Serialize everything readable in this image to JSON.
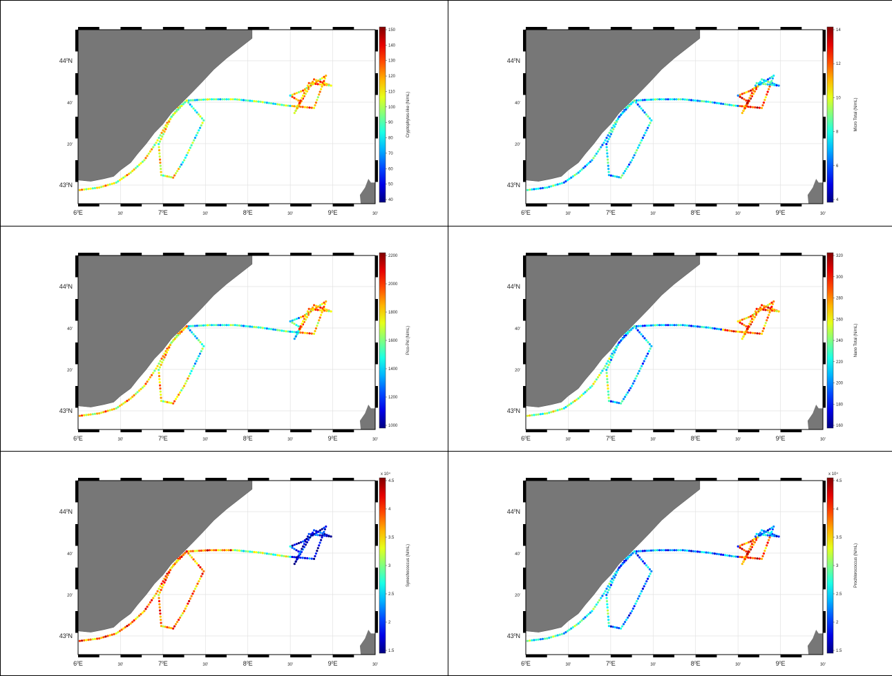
{
  "map_axes": {
    "x_ticks": [
      {
        "base": "6",
        "sup": "0",
        "suffix": "E"
      },
      {
        "base": "30'",
        "sup": "",
        "suffix": ""
      },
      {
        "base": "7",
        "sup": "0",
        "suffix": "E"
      },
      {
        "base": "30'",
        "sup": "",
        "suffix": ""
      },
      {
        "base": "8",
        "sup": "0",
        "suffix": "E"
      },
      {
        "base": "30'",
        "sup": "",
        "suffix": ""
      },
      {
        "base": "9",
        "sup": "0",
        "suffix": "E"
      },
      {
        "base": "30'",
        "sup": "",
        "suffix": ""
      }
    ],
    "y_ticks": [
      {
        "base": "44",
        "sup": "0",
        "suffix": "N"
      },
      {
        "base": "40'",
        "sup": "",
        "suffix": ""
      },
      {
        "base": "20'",
        "sup": "",
        "suffix": ""
      },
      {
        "base": "43",
        "sup": "0",
        "suffix": "N"
      }
    ],
    "land_color": "#777777",
    "grid": true
  },
  "panels": [
    {
      "colorbar_label": "Cryptophytes-like (N/mL)",
      "ticks": [
        "150",
        "140",
        "130",
        "120",
        "110",
        "100",
        "90",
        "80",
        "70",
        "60",
        "50",
        "40"
      ],
      "exponent": "",
      "pattern": "crypto"
    },
    {
      "colorbar_label": "Micro Total (N/mL)",
      "ticks": [
        "14",
        "12",
        "10",
        "8",
        "6",
        "4"
      ],
      "exponent": "",
      "pattern": "micro"
    },
    {
      "colorbar_label": "Pico-Pkl (N/mL)",
      "ticks": [
        "2200",
        "2000",
        "1800",
        "1600",
        "1400",
        "1200",
        "1000"
      ],
      "exponent": "",
      "pattern": "pico"
    },
    {
      "colorbar_label": "Nano Total (N/mL)",
      "ticks": [
        "320",
        "300",
        "280",
        "260",
        "240",
        "220",
        "200",
        "180",
        "160"
      ],
      "exponent": "",
      "pattern": "nano"
    },
    {
      "colorbar_label": "Synechococcus (N/mL)",
      "ticks": [
        "4.5",
        "4",
        "3.5",
        "3",
        "2.5",
        "2",
        "1.5"
      ],
      "exponent": "x 10⁴",
      "pattern": "syn"
    },
    {
      "colorbar_label": "Prochlorococcus (N/mL)",
      "ticks": [
        "4.5",
        "4",
        "3.5",
        "3",
        "2.5",
        "2",
        "1.5"
      ],
      "exponent": "x 10⁴",
      "pattern": "pro"
    }
  ]
}
